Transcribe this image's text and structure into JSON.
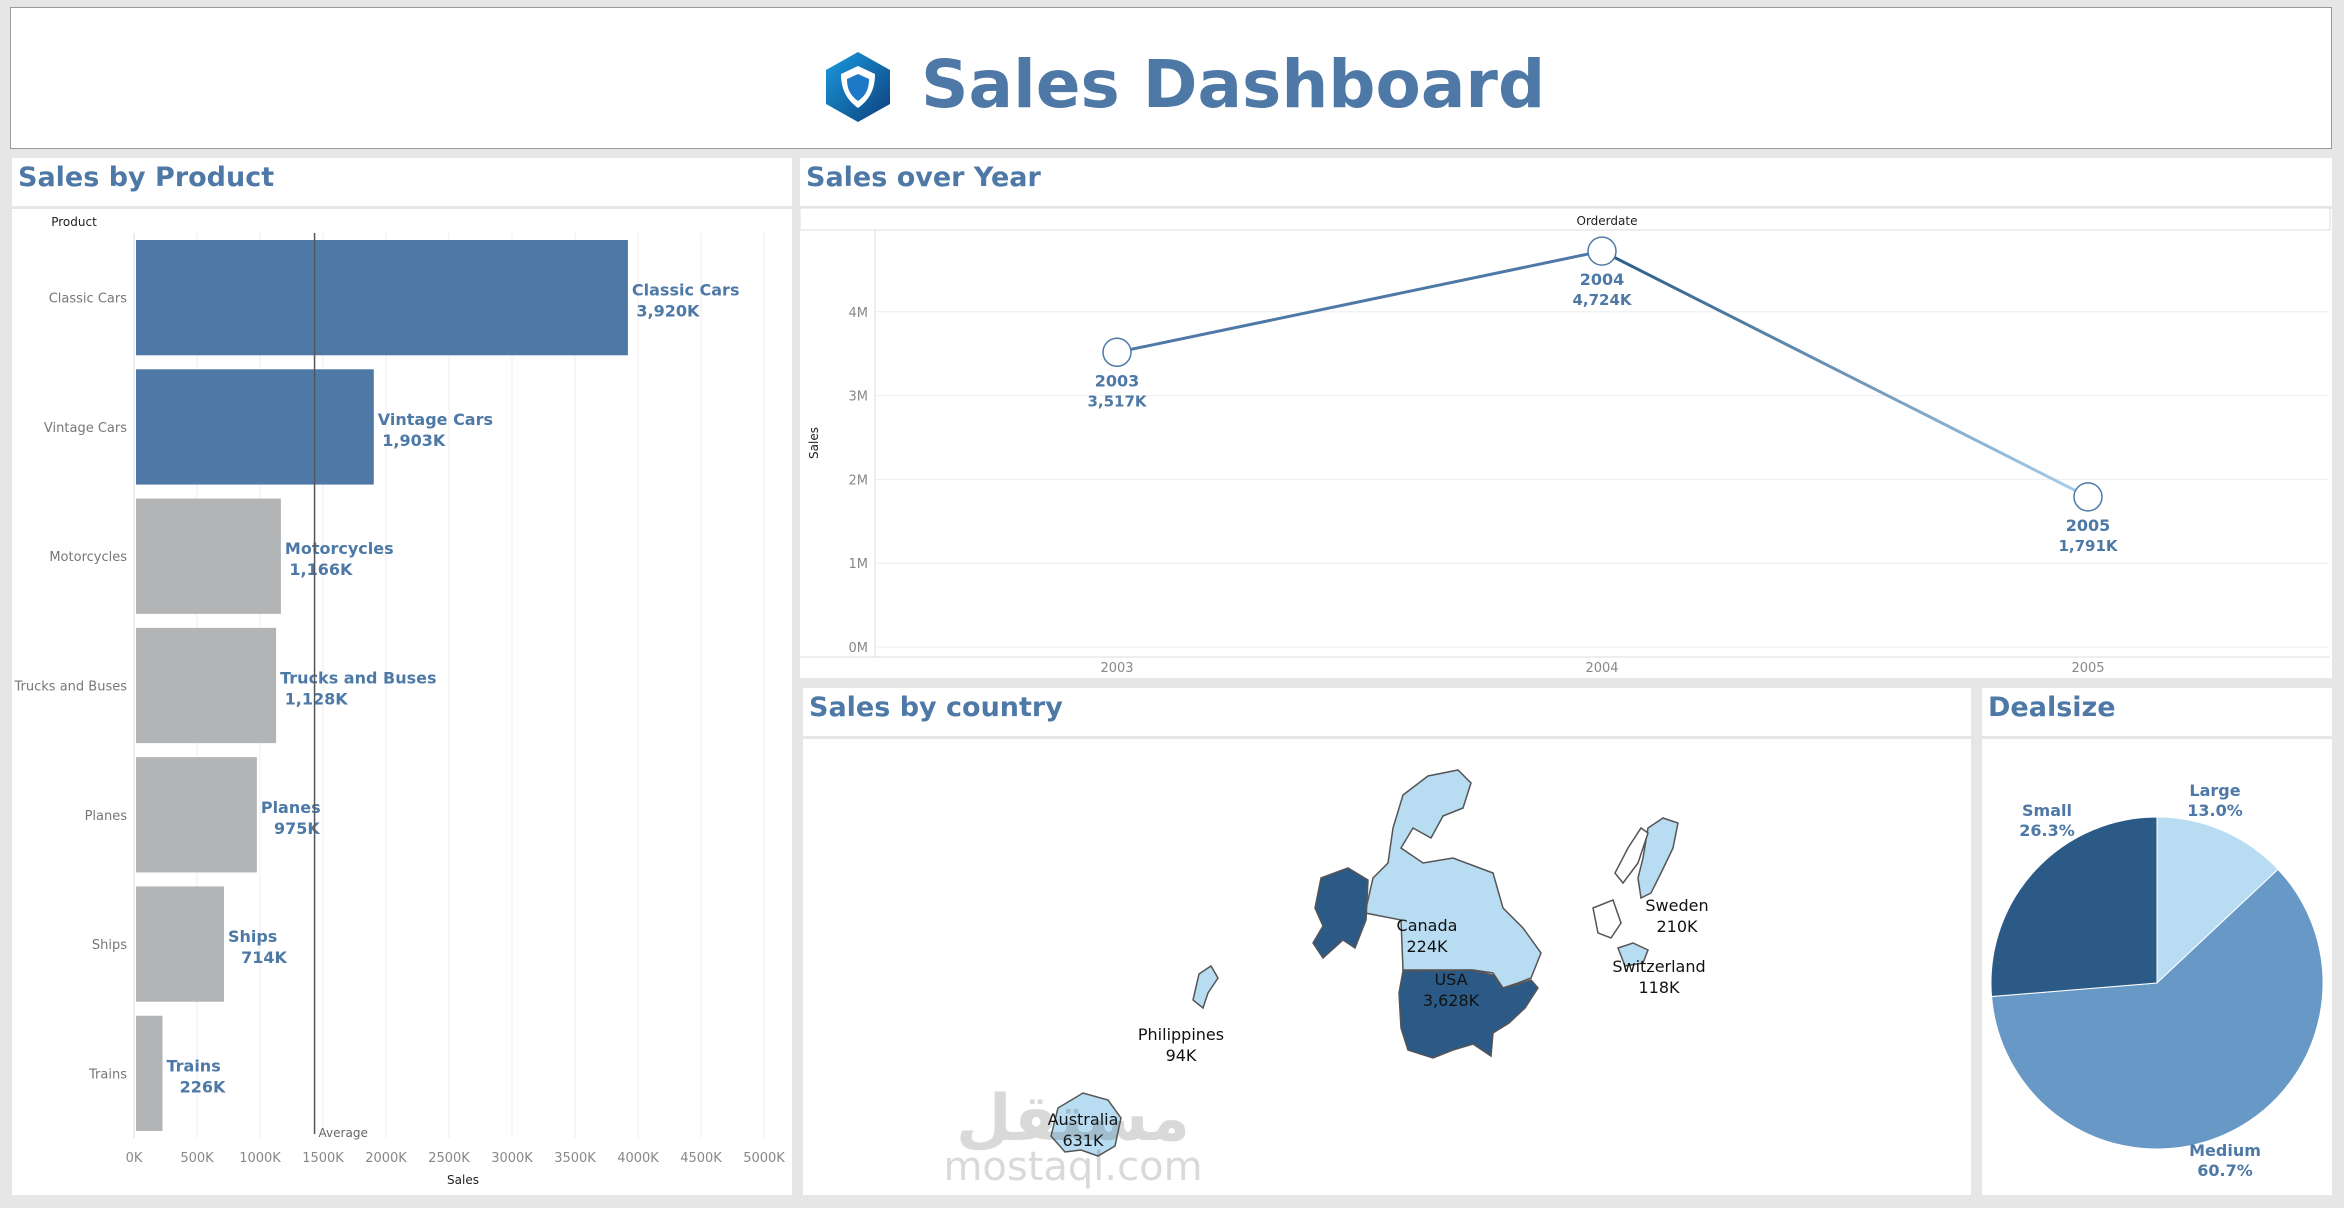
{
  "header": {
    "title": "Sales Dashboard",
    "logo_icon": "hexagon-shield-logo"
  },
  "colors": {
    "accent": "#4e79a7",
    "highlight_bar": "#4e79a7",
    "other_bar": "#b2b4b5",
    "dark_blue": "#2c5a87",
    "mid_blue": "#6899c6",
    "light_blue": "#b8dcf1"
  },
  "watermark": {
    "arabic": "مستقل",
    "latin": "mostaql.com"
  },
  "product_panel": {
    "title": "Sales by Product",
    "axis_header": "Product",
    "sales_header": "Sales",
    "average_label": "Average",
    "chart_data": {
      "type": "bar",
      "orientation": "horizontal",
      "categories": [
        "Classic Cars",
        "Vintage Cars",
        "Motorcycles",
        "Trucks and Buses",
        "Planes",
        "Ships",
        "Trains"
      ],
      "values": [
        3920,
        1903,
        1166,
        1128,
        975,
        714,
        226
      ],
      "value_labels": [
        "3,920K",
        "1,903K",
        "1,166K",
        "1,128K",
        "975K",
        "714K",
        "226K"
      ],
      "highlighted": [
        true,
        true,
        false,
        false,
        false,
        false,
        false
      ],
      "average": 1433,
      "xlim": [
        0,
        5000
      ],
      "x_ticks": [
        0,
        500,
        1000,
        1500,
        2000,
        2500,
        3000,
        3500,
        4000,
        4500,
        5000
      ],
      "x_tick_labels": [
        "0K",
        "500K",
        "1000K",
        "1500K",
        "2000K",
        "2500K",
        "3000K",
        "3500K",
        "4000K",
        "4500K",
        "5000K"
      ],
      "xlabel": "Sales",
      "ylabel": "Product"
    }
  },
  "year_panel": {
    "title": "Sales over Year",
    "column_header": "Orderdate",
    "chart_data": {
      "type": "line",
      "x": [
        "2003",
        "2004",
        "2005"
      ],
      "values": [
        3517,
        4724,
        1791
      ],
      "value_labels": [
        "3,517K",
        "4,724K",
        "1,791K"
      ],
      "ylim": [
        0,
        5000
      ],
      "y_ticks": [
        0,
        1000,
        2000,
        3000,
        4000
      ],
      "y_tick_labels": [
        "0M",
        "1M",
        "2M",
        "3M",
        "4M"
      ],
      "ylabel": "Sales",
      "xlabel": "Orderdate"
    }
  },
  "country_panel": {
    "title": "Sales by country",
    "countries": [
      {
        "name": "Canada",
        "value": "224K"
      },
      {
        "name": "USA",
        "value": "3,628K"
      },
      {
        "name": "Sweden",
        "value": "210K"
      },
      {
        "name": "Switzerland",
        "value": "118K"
      },
      {
        "name": "Philippines",
        "value": "94K"
      },
      {
        "name": "Australia",
        "value": "631K"
      }
    ]
  },
  "deal_panel": {
    "title": "Dealsize",
    "chart_data": {
      "type": "pie",
      "labels": [
        "Large",
        "Medium",
        "Small"
      ],
      "values": [
        13.0,
        60.7,
        26.3
      ],
      "value_labels": [
        "13.0%",
        "60.7%",
        "26.3%"
      ],
      "colors": [
        "#b8dcf1",
        "#6899c6",
        "#2c5a87"
      ]
    }
  }
}
